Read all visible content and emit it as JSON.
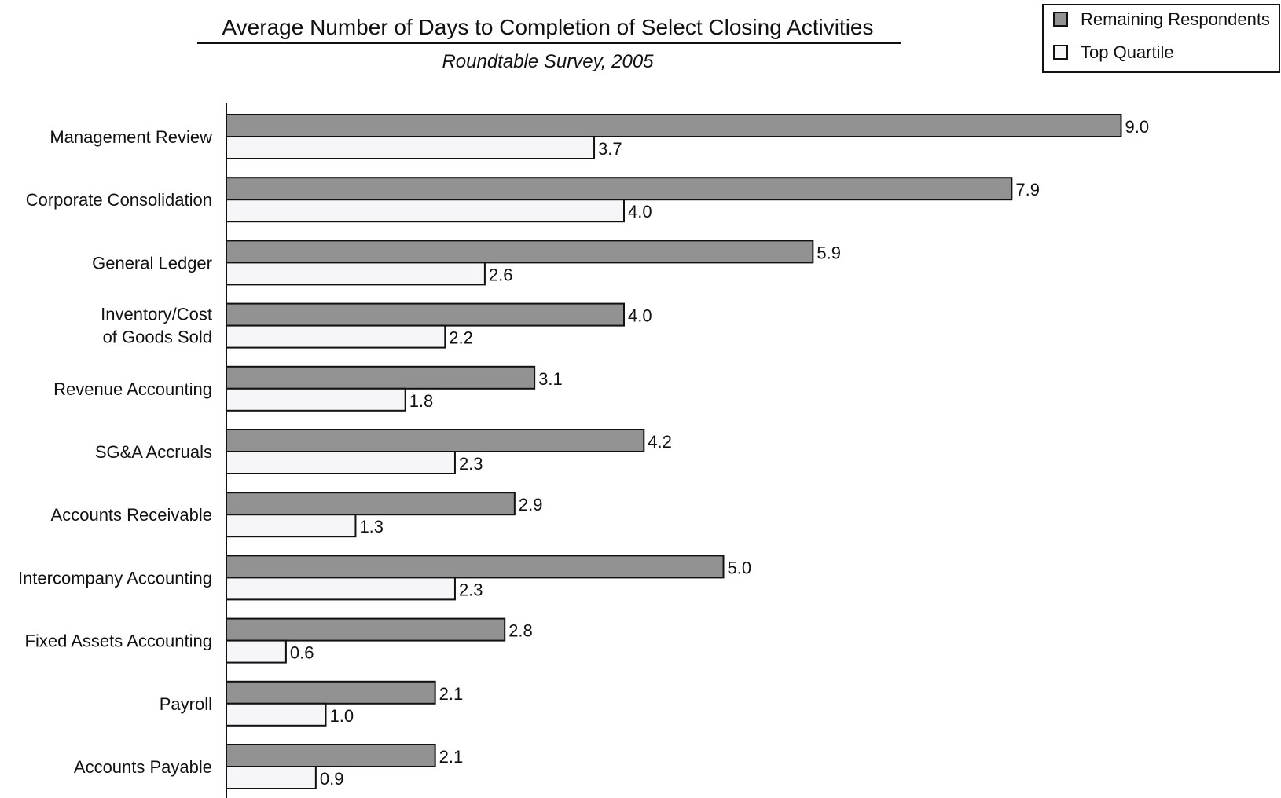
{
  "chart_data": {
    "type": "bar",
    "orientation": "horizontal",
    "title": "Average Number of Days to Completion of Select Closing Activities",
    "subtitle": "Roundtable Survey, 2005",
    "xlabel": "",
    "ylabel": "",
    "xlim": [
      0,
      10.5
    ],
    "grid": false,
    "legend_position": "top-right",
    "categories": [
      "Management Review",
      "Corporate Consolidation",
      "General Ledger",
      "Inventory/Cost of Goods Sold",
      "Revenue Accounting",
      "SG&A Accruals",
      "Accounts Receivable",
      "Intercompany Accounting",
      "Fixed Assets Accounting",
      "Payroll",
      "Accounts Payable"
    ],
    "category_label_lines": [
      [
        "Management Review"
      ],
      [
        "Corporate Consolidation"
      ],
      [
        "General Ledger"
      ],
      [
        "Inventory/Cost",
        "of Goods Sold"
      ],
      [
        "Revenue Accounting"
      ],
      [
        "SG&A Accruals"
      ],
      [
        "Accounts Receivable"
      ],
      [
        "Intercompany Accounting"
      ],
      [
        "Fixed Assets Accounting"
      ],
      [
        "Payroll"
      ],
      [
        "Accounts Payable"
      ]
    ],
    "series": [
      {
        "name": "Remaining Respondents",
        "color": "#929292",
        "values": [
          9.0,
          7.9,
          5.9,
          4.0,
          3.1,
          4.2,
          2.9,
          5.0,
          2.8,
          2.1,
          2.1
        ],
        "labels": [
          "9.0",
          "7.9",
          "5.9",
          "4.0",
          "3.1",
          "4.2",
          "2.9",
          "5.0",
          "2.8",
          "2.1",
          "2.1"
        ]
      },
      {
        "name": "Top Quartile",
        "color": "#f6f6f8",
        "values": [
          3.7,
          4.0,
          2.6,
          2.2,
          1.8,
          2.3,
          1.3,
          2.3,
          0.6,
          1.0,
          0.9
        ],
        "labels": [
          "3.7",
          "4.0",
          "2.6",
          "2.2",
          "1.8",
          "2.3",
          "1.3",
          "2.3",
          "0.6",
          "1.0",
          "0.9"
        ]
      }
    ]
  }
}
